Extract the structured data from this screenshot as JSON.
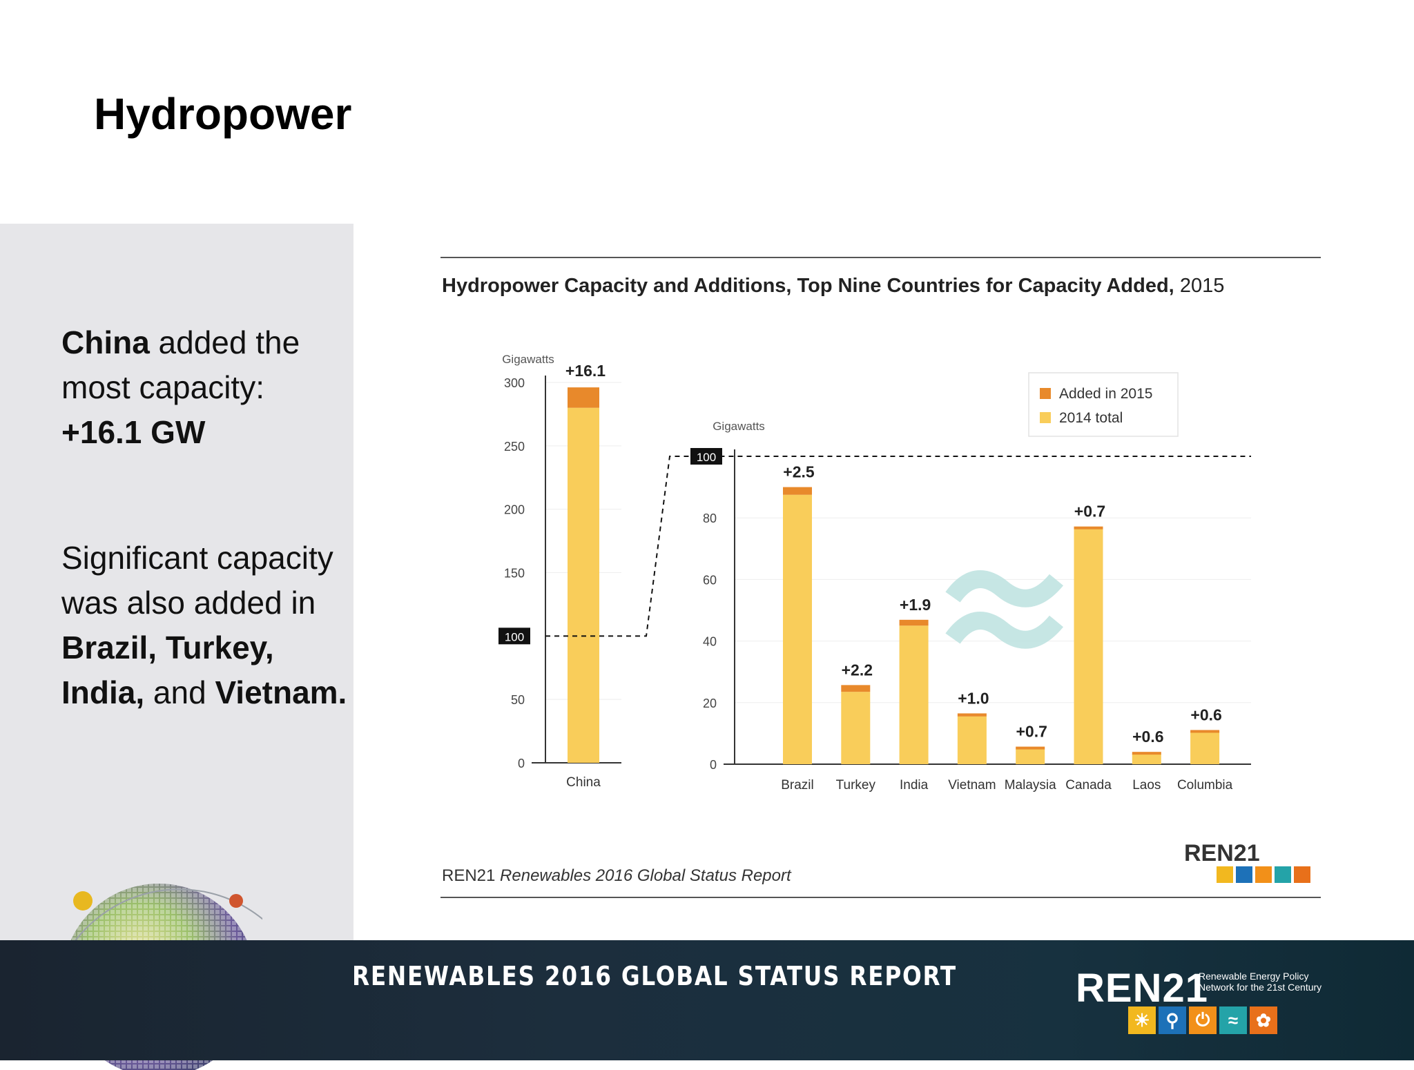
{
  "slide": {
    "title": "Hydropower",
    "block1": {
      "bold1": "China",
      "text1": " added the most capacity: ",
      "bold2": "+16.1 GW"
    },
    "block2": {
      "text1": "Significant capacity was also added in ",
      "bold1": "Brazil, Turkey, India,",
      "text2": " and ",
      "bold2": "Vietnam."
    }
  },
  "footer": {
    "title": "RENEWABLES 2016 GLOBAL STATUS REPORT",
    "logo_text": "REN21",
    "logo_subtitle": "Renewable Energy Policy Network for the 21st Century"
  },
  "chart_data": {
    "type": "bar",
    "stacked": true,
    "title": "Hydropower Capacity and Additions, Top Nine Countries for Capacity Added,",
    "title_year": "2015",
    "source_org": "REN21",
    "source_title": "Renewables 2016 Global Status Report",
    "legend": [
      "Added in 2015",
      "2014 total"
    ],
    "legend_position": "top-right",
    "colors": {
      "added": "#e8892b",
      "total": "#f9cd5a"
    },
    "left_panel": {
      "ylabel": "Gigawatts",
      "ylim": [
        0,
        300
      ],
      "yticks": [
        0,
        50,
        100,
        150,
        200,
        250,
        300
      ],
      "highlight_tick": 100,
      "categories": [
        "China"
      ],
      "base_2014": [
        280
      ],
      "added_2015": [
        16.1
      ],
      "labels": [
        "+16.1"
      ]
    },
    "right_panel": {
      "ylabel": "Gigawatts",
      "ylim": [
        0,
        100
      ],
      "yticks": [
        0,
        20,
        40,
        60,
        80,
        100
      ],
      "highlight_tick": 100,
      "categories": [
        "Brazil",
        "Turkey",
        "India",
        "Vietnam",
        "Malaysia",
        "Canada",
        "Laos",
        "Columbia"
      ],
      "base_2014": [
        87.5,
        23.5,
        45,
        15.5,
        5,
        76.5,
        3.4,
        10.5
      ],
      "added_2015": [
        2.5,
        2.2,
        1.9,
        1.0,
        0.7,
        0.7,
        0.6,
        0.6
      ],
      "labels": [
        "+2.5",
        "+2.2",
        "+1.9",
        "+1.0",
        "+0.7",
        "+0.7",
        "+0.6",
        "+0.6"
      ]
    },
    "grid": true
  }
}
